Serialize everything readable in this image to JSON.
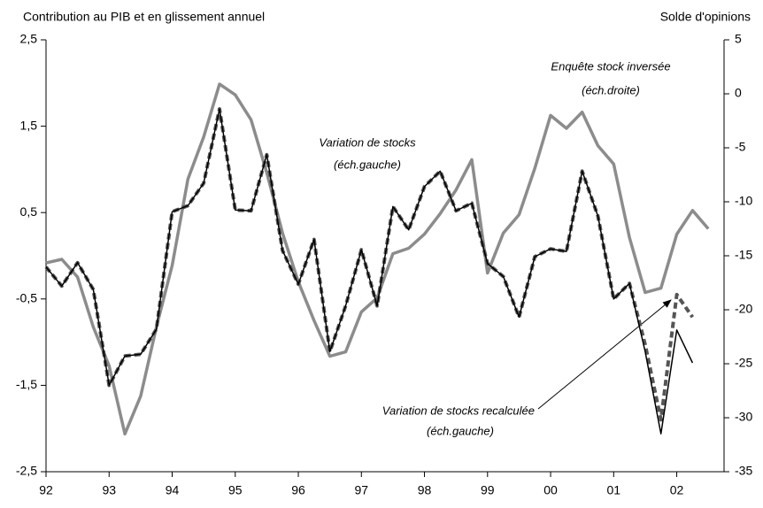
{
  "chart_data": {
    "type": "line",
    "ylabel": "Contribution au PIB et en glissement annuel",
    "y2label": "Solde d'opinions",
    "x": [
      1992,
      1992.25,
      1992.5,
      1992.75,
      1993,
      1993.25,
      1993.5,
      1993.75,
      1994,
      1994.25,
      1994.5,
      1994.75,
      1995,
      1995.25,
      1995.5,
      1995.75,
      1996,
      1996.25,
      1996.5,
      1996.75,
      1997,
      1997.25,
      1997.5,
      1997.75,
      1998,
      1998.25,
      1998.5,
      1998.75,
      1999,
      1999.25,
      1999.5,
      1999.75,
      2000,
      2000.25,
      2000.5,
      2000.75,
      2001,
      2001.25,
      2001.5,
      2001.75,
      2002,
      2002.25,
      2002.5
    ],
    "xlim": [
      1992,
      2002.75
    ],
    "xticks": [
      {
        "value": 1992,
        "label": "92"
      },
      {
        "value": 1993,
        "label": "93"
      },
      {
        "value": 1994,
        "label": "94"
      },
      {
        "value": 1995,
        "label": "95"
      },
      {
        "value": 1996,
        "label": "96"
      },
      {
        "value": 1997,
        "label": "97"
      },
      {
        "value": 1998,
        "label": "98"
      },
      {
        "value": 1999,
        "label": "99"
      },
      {
        "value": 2000,
        "label": "00"
      },
      {
        "value": 2001,
        "label": "01"
      },
      {
        "value": 2002,
        "label": "02"
      }
    ],
    "ylim": [
      -2.5,
      2.5
    ],
    "yticks": [
      {
        "value": 2.5,
        "label": "2,5"
      },
      {
        "value": 1.5,
        "label": "1,5"
      },
      {
        "value": 0.5,
        "label": "0,5"
      },
      {
        "value": -0.5,
        "label": "-0,5"
      },
      {
        "value": -1.5,
        "label": "-1,5"
      },
      {
        "value": -2.5,
        "label": "-2,5"
      }
    ],
    "y2lim": [
      -35,
      5
    ],
    "y2ticks": [
      5,
      0,
      -5,
      -10,
      -15,
      -20,
      -25,
      -30,
      -35
    ],
    "series": [
      {
        "name": "Variation de stocks",
        "color": "#000000",
        "values": [
          -0.13,
          -0.35,
          -0.08,
          -0.39,
          -1.5,
          -1.16,
          -1.14,
          -0.85,
          0.51,
          0.58,
          0.84,
          1.7,
          0.53,
          0.52,
          1.17,
          0.06,
          -0.33,
          0.19,
          -1.11,
          -0.58,
          0.07,
          -0.58,
          0.57,
          0.3,
          0.8,
          0.98,
          0.52,
          0.61,
          -0.09,
          -0.24,
          -0.71,
          -0.01,
          0.08,
          0.05,
          0.98,
          0.46,
          -0.5,
          -0.32,
          -1.11,
          -2.06,
          -0.86,
          -1.24,
          null
        ]
      },
      {
        "name": "Variation de stocks recalculée",
        "color": "#555555",
        "dashed": true,
        "values": [
          -0.13,
          -0.35,
          -0.08,
          -0.39,
          -1.5,
          -1.16,
          -1.14,
          -0.85,
          0.51,
          0.58,
          0.84,
          1.7,
          0.53,
          0.52,
          1.17,
          0.06,
          -0.33,
          0.19,
          -1.11,
          -0.58,
          0.07,
          -0.58,
          0.57,
          0.3,
          0.8,
          0.98,
          0.52,
          0.61,
          -0.09,
          -0.24,
          -0.71,
          -0.01,
          0.08,
          0.05,
          0.98,
          0.46,
          -0.5,
          -0.32,
          -1.03,
          -1.9,
          -0.45,
          -0.71,
          null
        ]
      },
      {
        "name": "Enquête stock inversée",
        "color": "#8c8c8c",
        "axis": "y2",
        "values": [
          -15.66,
          -15.33,
          -16.97,
          -21.6,
          -25.2,
          -31.5,
          -28.0,
          -21.6,
          -15.9,
          -7.9,
          -4.0,
          0.9,
          -0.1,
          -2.4,
          -7.3,
          -12.9,
          -17.4,
          -21.0,
          -24.3,
          -23.9,
          -20.2,
          -18.9,
          -14.8,
          -14.3,
          -13.0,
          -11.1,
          -8.9,
          -6.1,
          -16.6,
          -12.9,
          -11.2,
          -6.9,
          -2.0,
          -3.2,
          -1.7,
          -4.8,
          -6.5,
          -13.3,
          -18.4,
          -18.0,
          -13.0,
          -10.8,
          -12.5
        ]
      }
    ],
    "annotations": [
      "(éch.gauche)",
      "(éch.gauche)",
      "(éch.droite)"
    ]
  }
}
